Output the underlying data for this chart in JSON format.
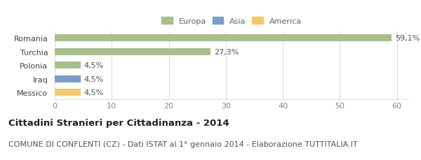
{
  "categories": [
    "Messico",
    "Iraq",
    "Polonia",
    "Turchia",
    "Romania"
  ],
  "values": [
    4.5,
    4.5,
    4.5,
    27.3,
    59.1
  ],
  "labels": [
    "4,5%",
    "4,5%",
    "4,5%",
    "27,3%",
    "59,1%"
  ],
  "colors": [
    "#f5c969",
    "#7b9dc7",
    "#a8bf8a",
    "#a8bf8a",
    "#a8bf8a"
  ],
  "legend": [
    {
      "label": "Europa",
      "color": "#a8bf8a"
    },
    {
      "label": "Asia",
      "color": "#7b9dc7"
    },
    {
      "label": "America",
      "color": "#f5c969"
    }
  ],
  "xlim": [
    0,
    62
  ],
  "xticks": [
    0,
    10,
    20,
    30,
    40,
    50,
    60
  ],
  "title": "Cittadini Stranieri per Cittadinanza - 2014",
  "subtitle": "COMUNE DI CONFLENTI (CZ) - Dati ISTAT al 1° gennaio 2014 - Elaborazione TUTTITALIA.IT",
  "title_fontsize": 9.5,
  "subtitle_fontsize": 8,
  "label_fontsize": 8,
  "tick_fontsize": 8,
  "bar_height": 0.52,
  "background_color": "#ffffff",
  "grid_color": "#dddddd"
}
